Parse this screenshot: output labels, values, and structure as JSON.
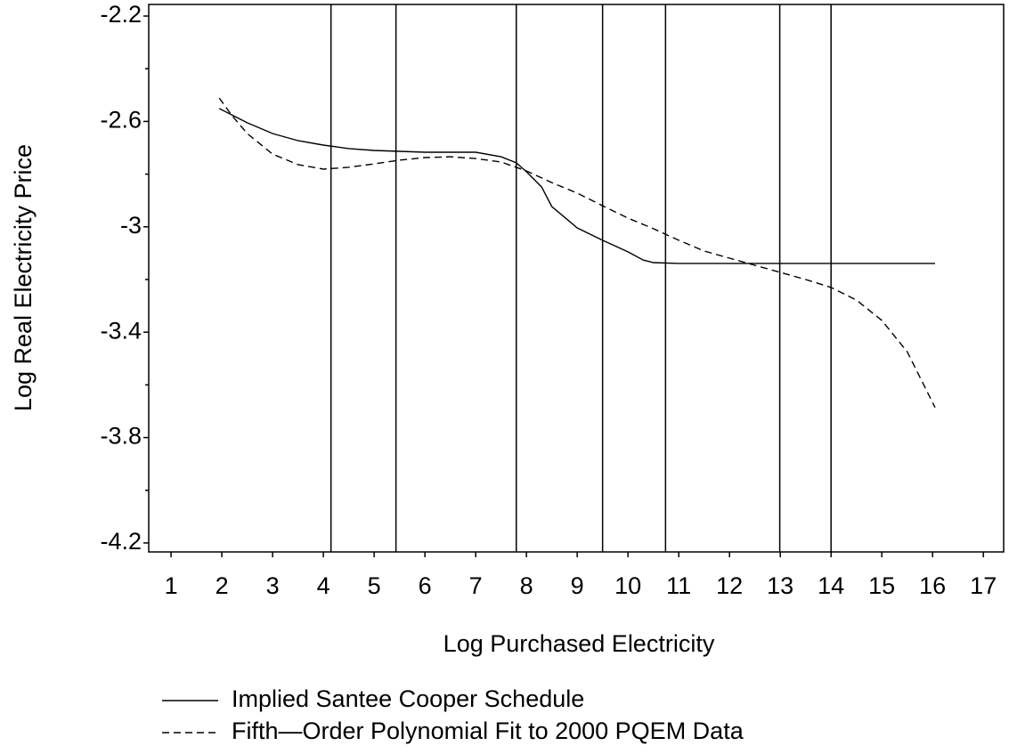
{
  "chart_data": {
    "type": "line",
    "x_label": "Log Purchased Electricity",
    "y_label": "Log Real Electricity Price",
    "xlim": [
      0.56,
      17.4
    ],
    "ylim": [
      -4.234,
      -2.156
    ],
    "xticks": [
      1,
      2,
      3,
      4,
      5,
      6,
      7,
      8,
      9,
      10,
      11,
      12,
      13,
      14,
      15,
      16,
      17
    ],
    "yticks": [
      -2.2,
      -2.6,
      -3.0,
      -3.4,
      -3.8,
      -4.2
    ],
    "yminorticks": [
      -2.4,
      -2.8,
      -3.2,
      -3.6,
      -4.0
    ],
    "vlines": [
      4.15,
      5.43,
      7.8,
      9.5,
      10.74,
      12.99,
      14.0
    ],
    "color": "#000000",
    "series": [
      {
        "name": "Implied Santee Cooper Schedule",
        "dash": "solid",
        "x": [
          1.95,
          2.5,
          3,
          3.5,
          4,
          4.5,
          5,
          6,
          7,
          7.5,
          7.8,
          8,
          8.3,
          8.5,
          9,
          9.5,
          10,
          10.3,
          10.5,
          11,
          16.05
        ],
        "values": [
          -2.551,
          -2.605,
          -2.646,
          -2.673,
          -2.69,
          -2.703,
          -2.71,
          -2.717,
          -2.717,
          -2.734,
          -2.757,
          -2.791,
          -2.849,
          -2.923,
          -3.004,
          -3.051,
          -3.095,
          -3.126,
          -3.136,
          -3.139,
          -3.139
        ]
      },
      {
        "name": "Fifth—Order Polynomial Fit to 2000 PQEM Data",
        "dash": "dashed",
        "x": [
          1.95,
          2.2,
          2.5,
          3,
          3.5,
          4,
          4.5,
          5,
          5.5,
          6,
          6.5,
          7,
          7.5,
          8,
          8.5,
          9,
          9.5,
          10,
          10.5,
          11,
          11.5,
          12,
          12.5,
          13,
          13.5,
          14,
          14.5,
          15,
          15.5,
          16.05
        ],
        "values": [
          -2.511,
          -2.578,
          -2.646,
          -2.724,
          -2.764,
          -2.781,
          -2.774,
          -2.761,
          -2.747,
          -2.737,
          -2.734,
          -2.741,
          -2.754,
          -2.788,
          -2.832,
          -2.872,
          -2.92,
          -2.967,
          -3.007,
          -3.051,
          -3.092,
          -3.119,
          -3.146,
          -3.173,
          -3.2,
          -3.23,
          -3.278,
          -3.355,
          -3.474,
          -3.686
        ]
      }
    ]
  }
}
